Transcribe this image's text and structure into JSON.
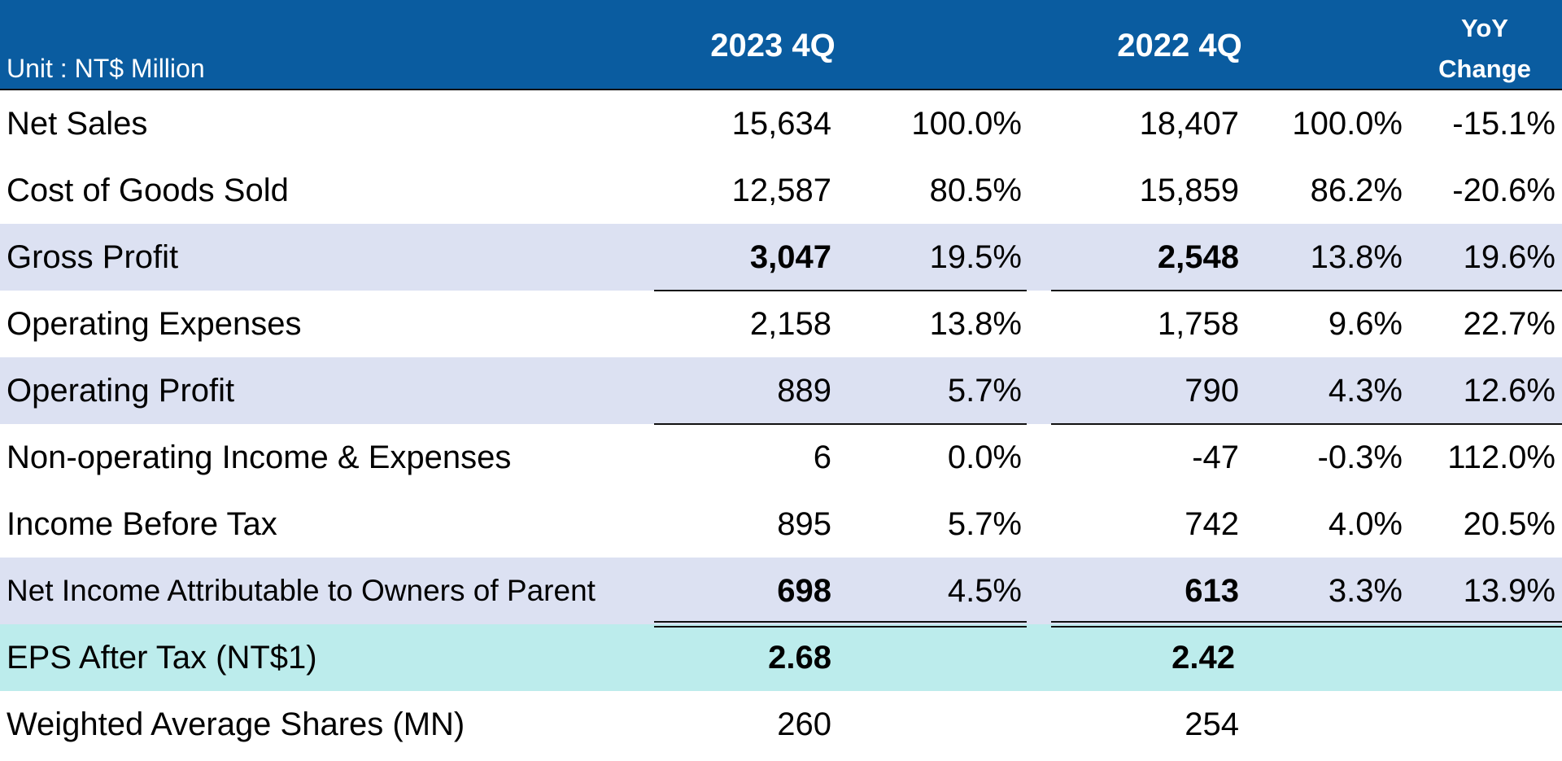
{
  "header": {
    "unit": "Unit : NT$ Million",
    "period_current": "2023 4Q",
    "period_prior": "2022 4Q",
    "yoy_line1": "YoY",
    "yoy_line2": "Change"
  },
  "colors": {
    "header_bg": "#0a5ca0",
    "shaded_row": "#dce1f2",
    "eps_row": "#bcecec"
  },
  "rows": [
    {
      "label": "Net Sales",
      "cur": "15,634",
      "cur_pct": "100.0%",
      "prior": "18,407",
      "prior_pct": "100.0%",
      "yoy": "-15.1%"
    },
    {
      "label": "Cost of Goods Sold",
      "cur": "12,587",
      "cur_pct": "80.5%",
      "prior": "15,859",
      "prior_pct": "86.2%",
      "yoy": "-20.6%"
    },
    {
      "label": "Gross Profit",
      "cur": "3,047",
      "cur_pct": "19.5%",
      "prior": "2,548",
      "prior_pct": "13.8%",
      "yoy": "19.6%"
    },
    {
      "label": "Operating Expenses",
      "cur": "2,158",
      "cur_pct": "13.8%",
      "prior": "1,758",
      "prior_pct": "9.6%",
      "yoy": "22.7%"
    },
    {
      "label": "Operating Profit",
      "cur": "889",
      "cur_pct": "5.7%",
      "prior": "790",
      "prior_pct": "4.3%",
      "yoy": "12.6%"
    },
    {
      "label": "Non-operating Income & Expenses",
      "cur": "6",
      "cur_pct": "0.0%",
      "prior": "-47",
      "prior_pct": "-0.3%",
      "yoy": "112.0%"
    },
    {
      "label": "Income Before Tax",
      "cur": "895",
      "cur_pct": "5.7%",
      "prior": "742",
      "prior_pct": "4.0%",
      "yoy": "20.5%"
    },
    {
      "label": "Net Income Attributable to  Owners of Parent",
      "cur": "698",
      "cur_pct": "4.5%",
      "prior": "613",
      "prior_pct": "3.3%",
      "yoy": "13.9%"
    },
    {
      "label": "EPS After Tax (NT$1)",
      "cur": "2.68",
      "cur_pct": "",
      "prior": "2.42",
      "prior_pct": "",
      "yoy": ""
    },
    {
      "label": "Weighted Average Shares  (MN)",
      "cur": "260",
      "cur_pct": "",
      "prior": "254",
      "prior_pct": "",
      "yoy": ""
    }
  ]
}
